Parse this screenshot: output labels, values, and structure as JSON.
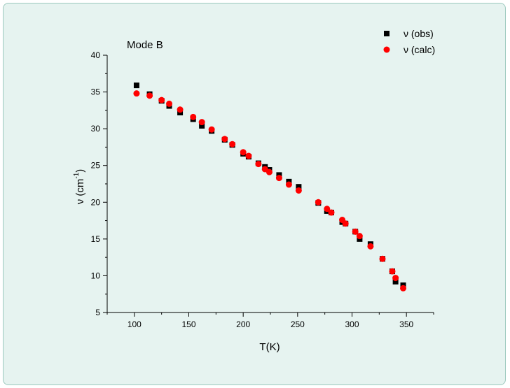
{
  "chart_data": {
    "type": "scatter",
    "title": "",
    "annotation": "Mode B",
    "xlabel": "T(K)",
    "ylabel": {
      "base": "ν (cm",
      "sup": "-1",
      "end": ")"
    },
    "xlim": [
      75,
      375
    ],
    "ylim": [
      5,
      40
    ],
    "xticks": [
      100,
      150,
      200,
      250,
      300,
      350
    ],
    "yticks": [
      5,
      10,
      15,
      20,
      25,
      30,
      35,
      40
    ],
    "grid": false,
    "legend_position": "top-right",
    "series": [
      {
        "name": "ν (obs)",
        "marker": "square",
        "color": "#000000",
        "x": [
          102,
          114,
          125,
          132,
          142,
          154,
          162,
          171,
          183,
          190,
          200,
          205,
          214,
          220,
          224,
          233,
          242,
          251,
          269,
          277,
          281,
          291,
          294,
          303,
          307,
          317,
          328,
          337,
          340,
          347
        ],
        "y": [
          35.9,
          34.7,
          33.8,
          33.1,
          32.2,
          31.3,
          30.4,
          29.7,
          28.5,
          27.8,
          26.6,
          26.2,
          25.3,
          24.8,
          24.4,
          23.7,
          22.8,
          22.1,
          19.9,
          18.8,
          18.6,
          17.3,
          17.1,
          16.0,
          15.0,
          14.3,
          12.3,
          10.6,
          9.2,
          8.7
        ]
      },
      {
        "name": "ν (calc)",
        "marker": "circle",
        "color": "#ff0000",
        "x": [
          102,
          114,
          125,
          132,
          142,
          154,
          162,
          171,
          183,
          190,
          200,
          205,
          214,
          220,
          224,
          233,
          242,
          251,
          269,
          277,
          281,
          291,
          294,
          303,
          307,
          317,
          328,
          337,
          340,
          347
        ],
        "y": [
          34.8,
          34.5,
          33.9,
          33.4,
          32.6,
          31.6,
          30.9,
          29.9,
          28.6,
          27.9,
          26.8,
          26.3,
          25.2,
          24.5,
          24.1,
          23.3,
          22.4,
          21.6,
          20.0,
          19.1,
          18.6,
          17.6,
          17.1,
          16.0,
          15.4,
          14.0,
          12.3,
          10.6,
          9.7,
          8.3
        ]
      }
    ]
  }
}
